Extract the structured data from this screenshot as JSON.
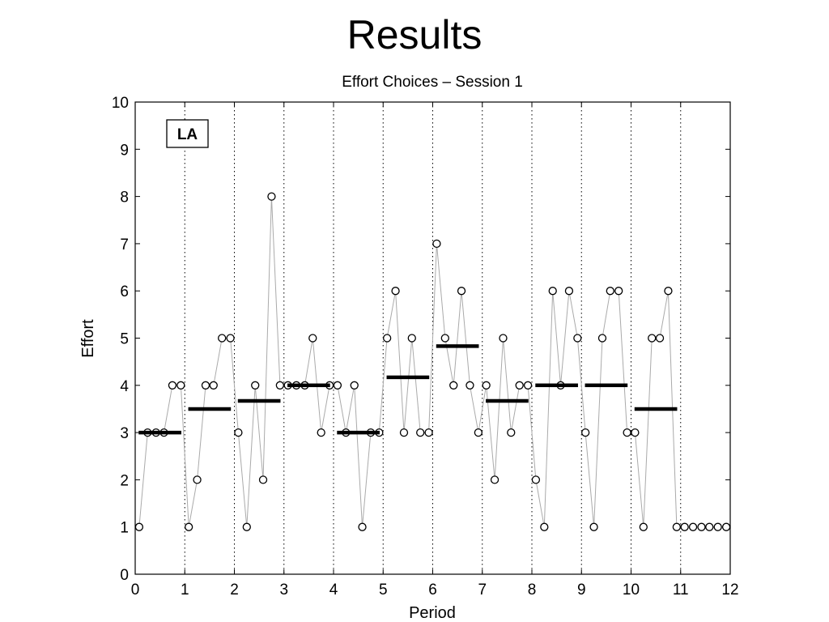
{
  "slide": {
    "title": "Results"
  },
  "chart_data": {
    "type": "scatter",
    "title": "Effort Choices – Session 1",
    "xlabel": "Period",
    "ylabel": "Effort",
    "xlim": [
      0,
      12
    ],
    "ylim": [
      0,
      10
    ],
    "xticks": [
      0,
      1,
      2,
      3,
      4,
      5,
      6,
      7,
      8,
      9,
      10,
      11,
      12
    ],
    "yticks": [
      0,
      1,
      2,
      3,
      4,
      5,
      6,
      7,
      8,
      9,
      10
    ],
    "annotation": "LA",
    "grid": "vertical dotted lines at integer periods",
    "series": [
      {
        "type": "line-markers",
        "x": [
          0.08,
          0.25,
          0.42,
          0.58,
          0.75,
          0.92,
          1.08,
          1.25,
          1.42,
          1.58,
          1.75,
          1.92,
          2.08,
          2.25,
          2.42,
          2.58,
          2.75,
          2.92,
          3.08,
          3.25,
          3.42,
          3.58,
          3.75,
          3.92,
          4.08,
          4.25,
          4.42,
          4.58,
          4.75,
          4.92,
          5.08,
          5.25,
          5.42,
          5.58,
          5.75,
          5.92,
          6.08,
          6.25,
          6.42,
          6.58,
          6.75,
          6.92,
          7.08,
          7.25,
          7.42,
          7.58,
          7.75,
          7.92,
          8.08,
          8.25,
          8.42,
          8.58,
          8.75,
          8.92,
          9.08,
          9.25,
          9.42,
          9.58,
          9.75,
          9.92,
          10.08,
          10.25,
          10.42,
          10.58,
          10.75,
          10.92,
          11.08,
          11.25,
          11.42,
          11.58,
          11.75,
          11.92
        ],
        "y": [
          1,
          3,
          3,
          3,
          4,
          4,
          1,
          2,
          4,
          4,
          5,
          5,
          3,
          1,
          4,
          2,
          8,
          4,
          4,
          4,
          4,
          5,
          3,
          4,
          4,
          3,
          4,
          1,
          3,
          3,
          5,
          6,
          3,
          5,
          3,
          3,
          7,
          5,
          4,
          6,
          4,
          3,
          4,
          2,
          5,
          3,
          4,
          4,
          2,
          1,
          6,
          4,
          6,
          5,
          3,
          1,
          5,
          6,
          6,
          3,
          3,
          1,
          5,
          5,
          6,
          1,
          1,
          1,
          1,
          1,
          1,
          1
        ]
      },
      {
        "type": "period-means",
        "periods": [
          0,
          1,
          2,
          3,
          4,
          5,
          6,
          7,
          8,
          9,
          10
        ],
        "values": [
          3.0,
          3.5,
          3.67,
          4.0,
          3.0,
          4.17,
          4.83,
          3.67,
          4.0,
          4.0,
          3.5
        ]
      }
    ]
  }
}
